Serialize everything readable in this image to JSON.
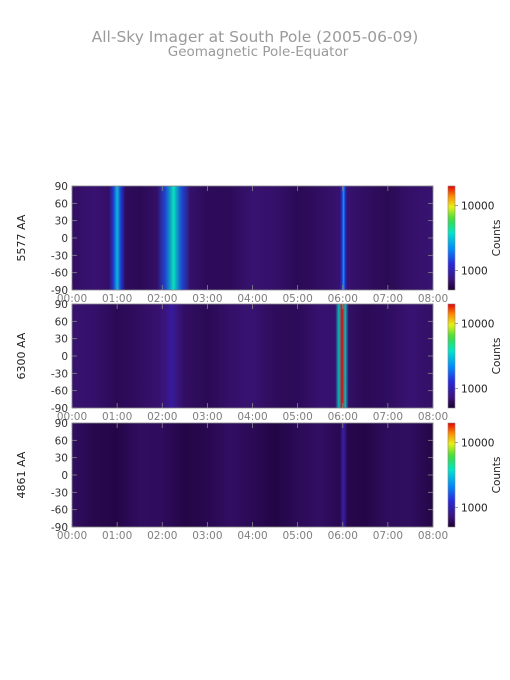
{
  "header": {
    "title": "All-Sky Imager at South Pole (2005-06-09)",
    "subtitle": "Geomagnetic Pole-Equator"
  },
  "chart_data": [
    {
      "type": "heatmap",
      "panel": "5577",
      "ylabel": "5577 AA",
      "x_ticks": [
        "00:00",
        "01:00",
        "02:00",
        "03:00",
        "04:00",
        "05:00",
        "06:00",
        "07:00",
        "08:00"
      ],
      "x_range_hours": [
        0,
        8
      ],
      "y_ticks": [
        "90",
        "60",
        "30",
        "0",
        "-30",
        "-60",
        "-90"
      ],
      "y_range": [
        -90,
        90
      ],
      "colorbar": {
        "label": "Counts",
        "scale": "log",
        "ticks": [
          "10000",
          "1000"
        ],
        "tick_values": [
          10000,
          1000
        ],
        "range": [
          500,
          20000
        ]
      },
      "background_counts": 650,
      "features": [
        {
          "time_start": "00:55",
          "time_end": "01:05",
          "peak_counts": 3000
        },
        {
          "time_start": "02:05",
          "time_end": "02:25",
          "peak_counts": 4000
        },
        {
          "time_start": "06:00",
          "time_end": "06:02",
          "peak_counts": 2500
        }
      ]
    },
    {
      "type": "heatmap",
      "panel": "6300",
      "ylabel": "6300 AA",
      "x_ticks": [
        "00:00",
        "01:00",
        "02:00",
        "03:00",
        "04:00",
        "05:00",
        "06:00",
        "07:00",
        "08:00"
      ],
      "x_range_hours": [
        0,
        8
      ],
      "y_ticks": [
        "90",
        "60",
        "30",
        "0",
        "-30",
        "-60",
        "-90"
      ],
      "y_range": [
        -90,
        90
      ],
      "colorbar": {
        "label": "Counts",
        "scale": "log",
        "ticks": [
          "10000",
          "1000"
        ],
        "tick_values": [
          10000,
          1000
        ],
        "range": [
          500,
          20000
        ]
      },
      "background_counts": 650,
      "features": [
        {
          "time_start": "02:05",
          "time_end": "02:20",
          "peak_counts": 900
        },
        {
          "time_start": "05:55",
          "time_end": "06:03",
          "peak_counts": 20000
        }
      ]
    },
    {
      "type": "heatmap",
      "panel": "4861",
      "ylabel": "4861 AA",
      "x_ticks": [
        "00:00",
        "01:00",
        "02:00",
        "03:00",
        "04:00",
        "05:00",
        "06:00",
        "07:00",
        "08:00"
      ],
      "x_range_hours": [
        0,
        8
      ],
      "y_ticks": [
        "90",
        "60",
        "30",
        "0",
        "-30",
        "-60",
        "-90"
      ],
      "y_range": [
        -90,
        90
      ],
      "colorbar": {
        "label": "Counts",
        "scale": "log",
        "ticks": [
          "10000",
          "1000"
        ],
        "tick_values": [
          10000,
          1000
        ],
        "range": [
          500,
          20000
        ]
      },
      "background_counts": 600,
      "features": [
        {
          "time_start": "06:00",
          "time_end": "06:02",
          "peak_counts": 1000
        }
      ]
    }
  ]
}
